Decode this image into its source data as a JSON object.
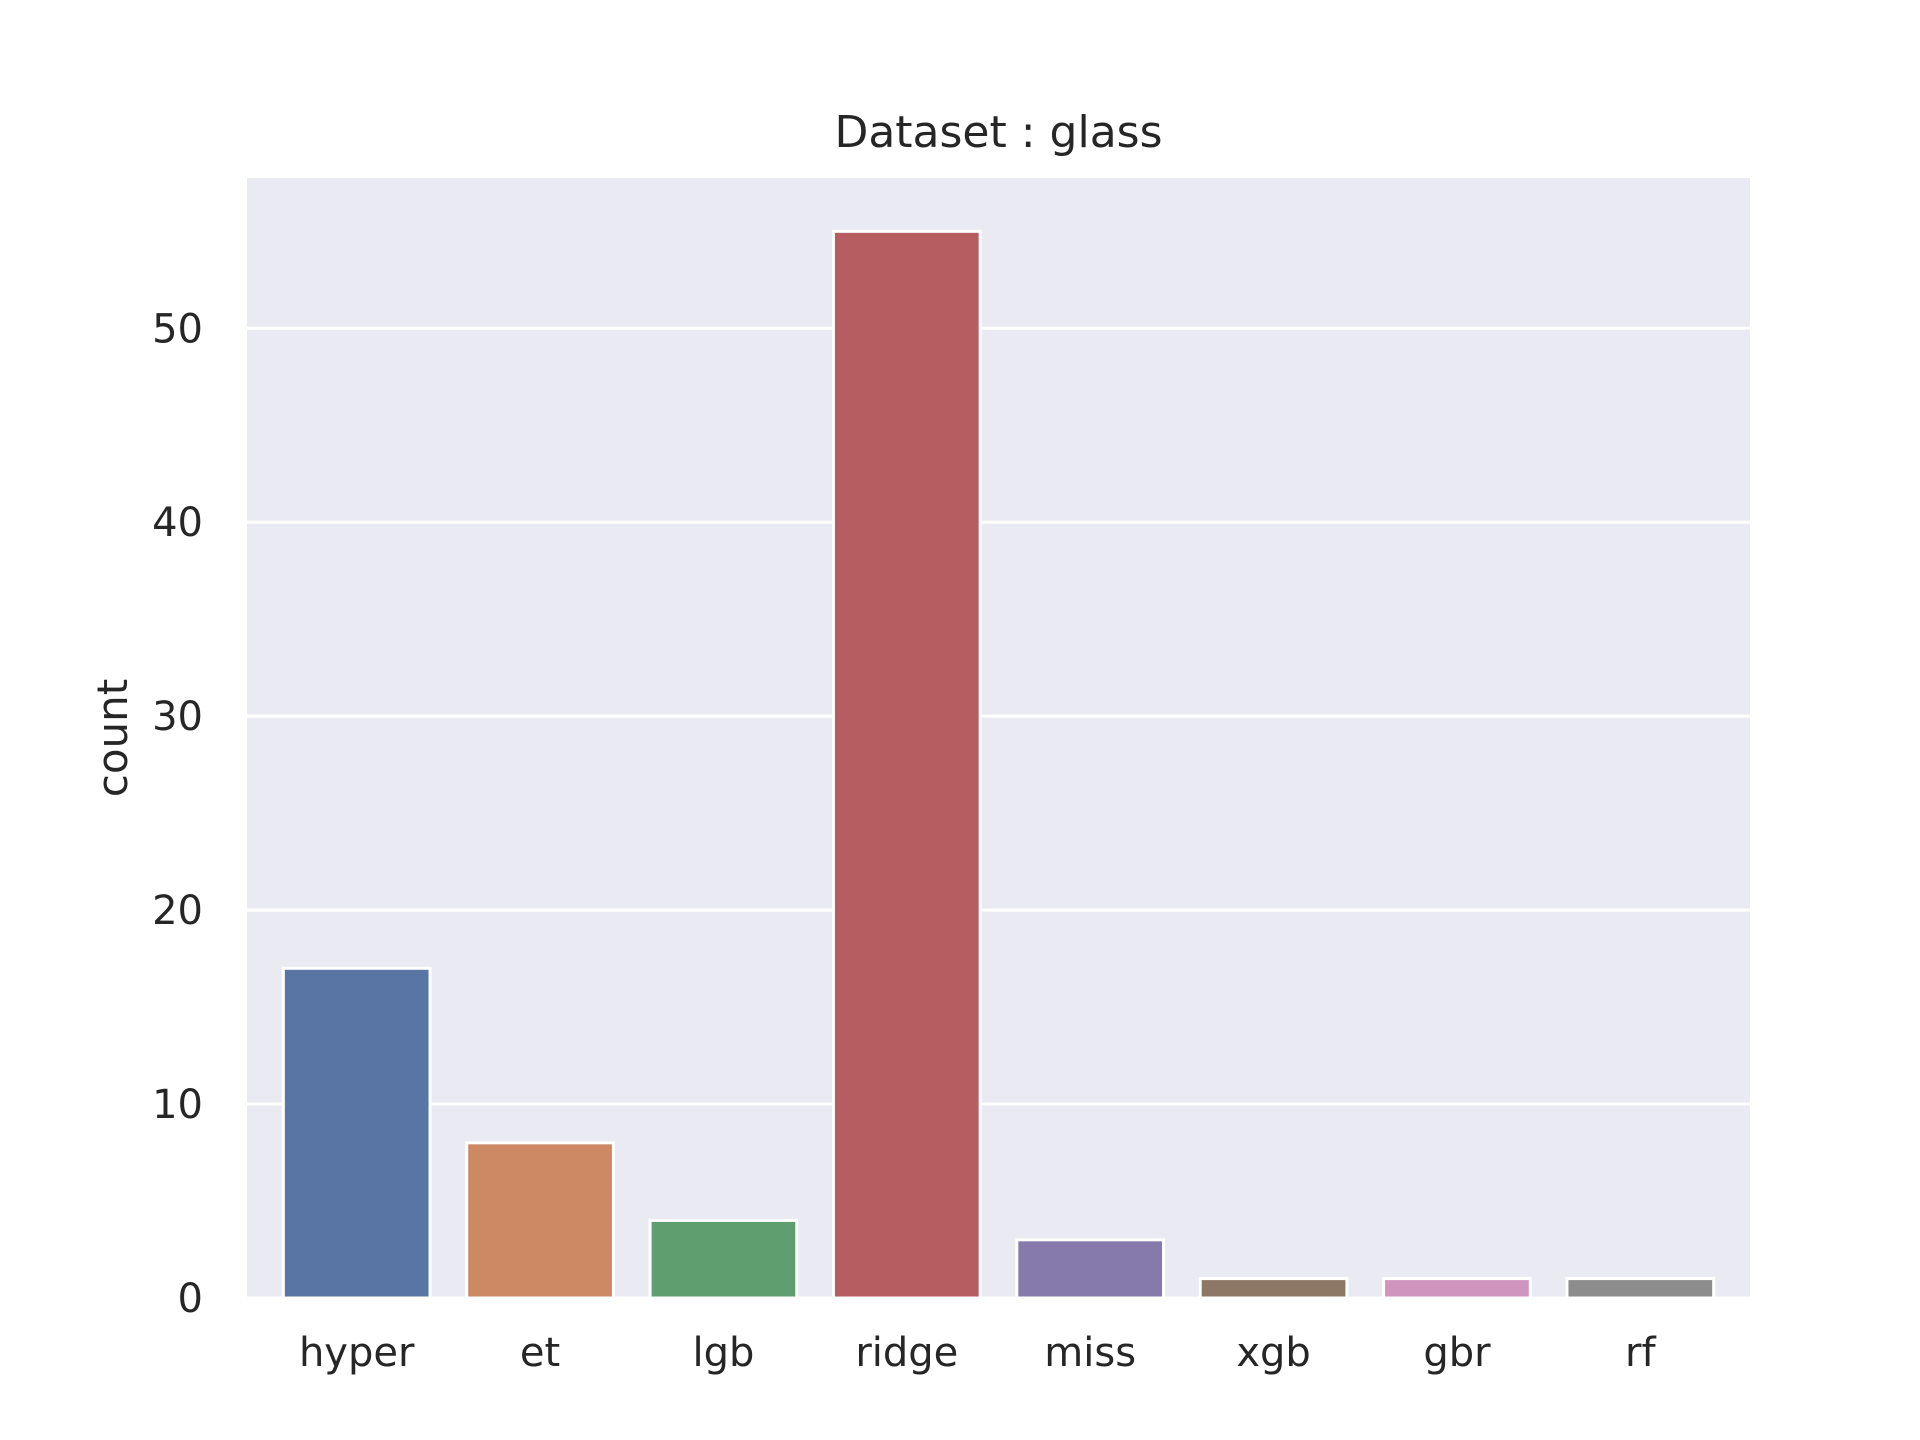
{
  "chart_data": {
    "type": "bar",
    "title": "Dataset : glass",
    "xlabel": "",
    "ylabel": "count",
    "categories": [
      "hyper",
      "et",
      "lgb",
      "ridge",
      "miss",
      "xgb",
      "gbr",
      "rf"
    ],
    "values": [
      17,
      8,
      4,
      55,
      3,
      1,
      1,
      1
    ],
    "colors": [
      "#5975a4",
      "#cc8963",
      "#5f9e6e",
      "#b55d60",
      "#857aab",
      "#8d7866",
      "#d095bf",
      "#8c8c8c"
    ],
    "ylim": [
      0,
      57.75
    ],
    "yticks": [
      0,
      10,
      20,
      30,
      40,
      50
    ],
    "grid": true,
    "background": "#eaeaf2"
  }
}
